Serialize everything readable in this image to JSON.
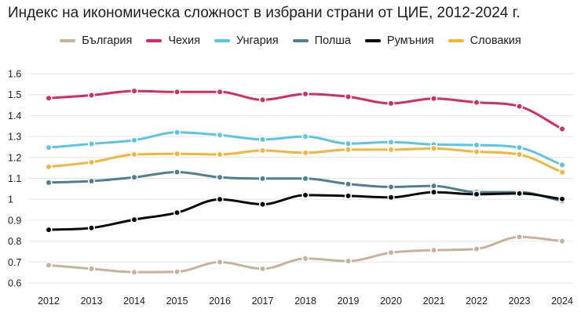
{
  "chart_data": {
    "type": "line",
    "title": "Индекс на икономическа сложност в избрани страни от ЦИЕ, 2012-2024 г.",
    "xlabel": "",
    "ylabel": "",
    "ylim": [
      0.6,
      1.6
    ],
    "yticks": [
      0.6,
      0.7,
      0.8,
      0.9,
      1,
      1.1,
      1.2,
      1.3,
      1.4,
      1.5,
      1.6
    ],
    "ytick_labels": [
      "0.6",
      "0.7",
      "0.8",
      "0.9",
      "1",
      "1.1",
      "1.2",
      "1.3",
      "1.4",
      "1.5",
      "1.6"
    ],
    "grid": true,
    "legend_position": "top-center",
    "x": [
      "2012",
      "2013",
      "2014",
      "2015",
      "2016",
      "2017",
      "2018",
      "2019",
      "2020",
      "2021",
      "2022",
      "2023",
      "2024"
    ],
    "series": [
      {
        "name": "България",
        "color": "#c7b39b",
        "values": [
          0.685,
          0.668,
          0.652,
          0.654,
          0.7,
          0.668,
          0.717,
          0.705,
          0.745,
          0.757,
          0.763,
          0.82,
          0.8
        ]
      },
      {
        "name": "Чехия",
        "color": "#d12e66",
        "values": [
          1.483,
          1.497,
          1.517,
          1.513,
          1.513,
          1.475,
          1.503,
          1.49,
          1.458,
          1.481,
          1.463,
          1.444,
          1.336
        ]
      },
      {
        "name": "Унгария",
        "color": "#5ec4e5",
        "values": [
          1.247,
          1.265,
          1.282,
          1.32,
          1.307,
          1.286,
          1.3,
          1.266,
          1.273,
          1.262,
          1.259,
          1.247,
          1.164
        ]
      },
      {
        "name": "Полша",
        "color": "#4f7f91",
        "values": [
          1.08,
          1.087,
          1.105,
          1.13,
          1.105,
          1.099,
          1.099,
          1.073,
          1.059,
          1.064,
          1.034,
          1.034,
          0.992
        ]
      },
      {
        "name": "Румъния",
        "color": "#0a0a0a",
        "values": [
          0.854,
          0.863,
          0.903,
          0.936,
          1.0,
          0.976,
          1.02,
          1.016,
          1.009,
          1.034,
          1.024,
          1.028,
          1.001
        ]
      },
      {
        "name": "Словакия",
        "color": "#f3b63c",
        "values": [
          1.155,
          1.177,
          1.214,
          1.217,
          1.214,
          1.233,
          1.222,
          1.237,
          1.237,
          1.243,
          1.227,
          1.214,
          1.129
        ]
      }
    ]
  }
}
